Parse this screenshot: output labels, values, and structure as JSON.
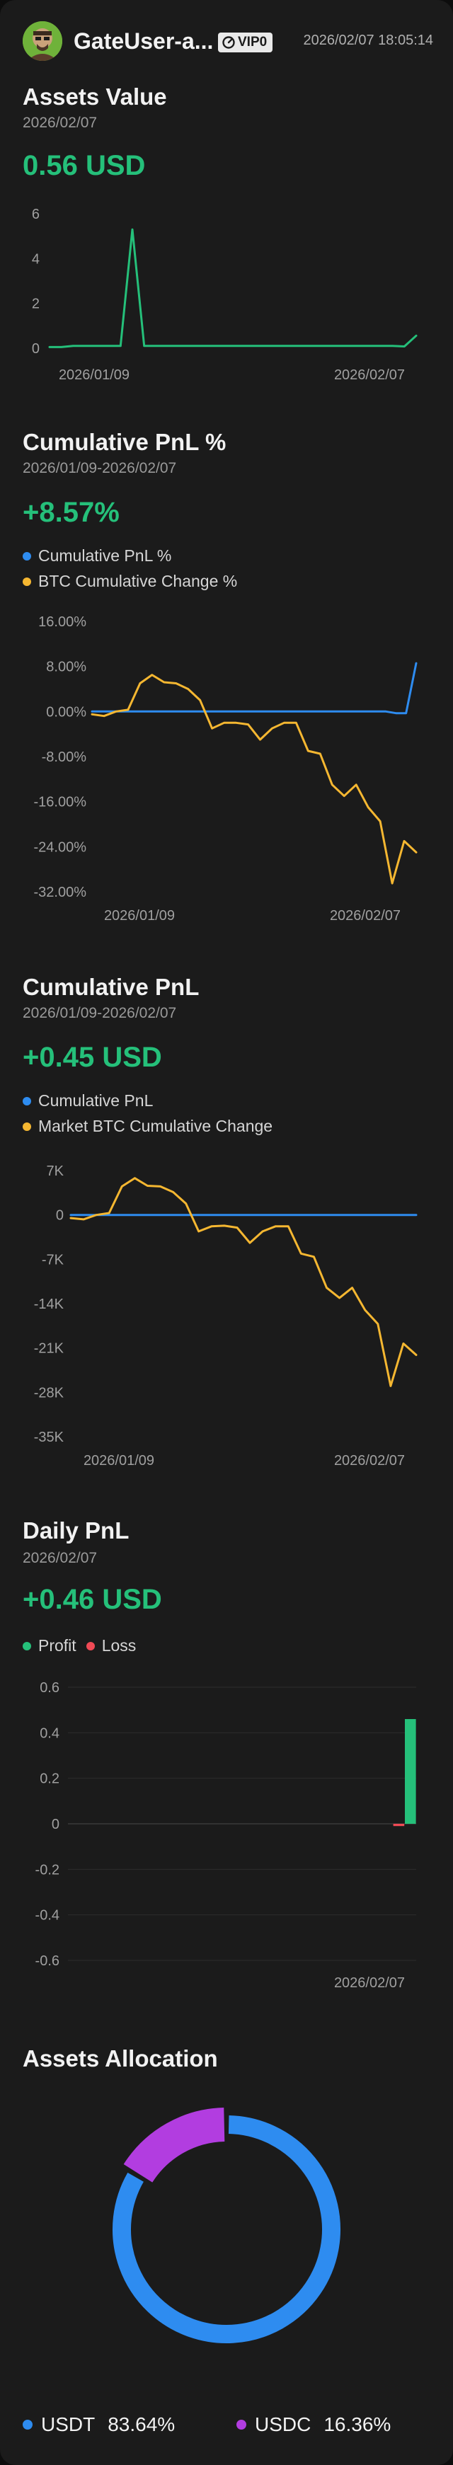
{
  "header": {
    "username": "GateUser-a...",
    "vip_label": "VIP0",
    "datetime": "2026/02/07 18:05:14"
  },
  "assets_value": {
    "title": "Assets Value",
    "date": "2026/02/07",
    "value": "0.56 USD",
    "chart_data": {
      "type": "line",
      "x_tick_labels": [
        "2026/01/09",
        "2026/02/07"
      ],
      "y_ticks": [
        0,
        2,
        4,
        6
      ],
      "ylim": [
        0,
        6
      ],
      "series": [
        {
          "color": "#25c07a",
          "values": [
            0.05,
            0.05,
            0.1,
            0.1,
            0.1,
            0.1,
            0.1,
            5.3,
            0.1,
            0.1,
            0.1,
            0.1,
            0.1,
            0.1,
            0.1,
            0.1,
            0.1,
            0.1,
            0.1,
            0.1,
            0.1,
            0.1,
            0.1,
            0.1,
            0.1,
            0.1,
            0.1,
            0.1,
            0.1,
            0.1,
            0.08,
            0.56
          ]
        }
      ]
    }
  },
  "cum_pnl_pct": {
    "title": "Cumulative PnL %",
    "date_range": "2026/01/09-2026/02/07",
    "value": "+8.57%",
    "legend": [
      {
        "label": "Cumulative PnL %",
        "color": "#2e8cf0"
      },
      {
        "label": "BTC Cumulative Change %",
        "color": "#f5b731"
      }
    ],
    "chart_data": {
      "type": "line",
      "x_tick_labels": [
        "2026/01/09",
        "2026/02/07"
      ],
      "y_tick_labels": [
        "16.00%",
        "8.00%",
        "0.00%",
        "-8.00%",
        "-16.00%",
        "-24.00%",
        "-32.00%"
      ],
      "y_ticks": [
        16,
        8,
        0,
        -8,
        -16,
        -24,
        -32
      ],
      "ylim": [
        -32,
        16
      ],
      "series": [
        {
          "name": "Cumulative PnL %",
          "color": "#2e8cf0",
          "values": [
            0,
            0,
            0,
            0,
            0,
            0,
            0,
            0,
            0,
            0,
            0,
            0,
            0,
            0,
            0,
            0,
            0,
            0,
            0,
            0,
            0,
            0,
            0,
            0,
            0,
            0,
            0,
            0,
            0,
            0,
            -0.3,
            -0.3,
            8.57
          ]
        },
        {
          "name": "BTC Cumulative Change %",
          "color": "#f5b731",
          "values": [
            -0.5,
            -0.8,
            0,
            0.3,
            5,
            6.5,
            5.2,
            5,
            4,
            2,
            -3,
            -2,
            -2,
            -2.3,
            -5,
            -3,
            -2,
            -2,
            -7,
            -7.5,
            -13,
            -15,
            -13,
            -17,
            -19.5,
            -30.5,
            -23,
            -25
          ]
        }
      ]
    }
  },
  "cum_pnl": {
    "title": "Cumulative PnL",
    "date_range": "2026/01/09-2026/02/07",
    "value": "+0.45 USD",
    "legend": [
      {
        "label": "Cumulative PnL",
        "color": "#2e8cf0"
      },
      {
        "label": "Market BTC Cumulative Change",
        "color": "#f5b731"
      }
    ],
    "chart_data": {
      "type": "line",
      "x_tick_labels": [
        "2026/01/09",
        "2026/02/07"
      ],
      "y_tick_labels": [
        "7K",
        "0",
        "-7K",
        "-14K",
        "-21K",
        "-28K",
        "-35K"
      ],
      "y_ticks": [
        7000,
        0,
        -7000,
        -14000,
        -21000,
        -28000,
        -35000
      ],
      "ylim": [
        -35000,
        7000
      ],
      "series": [
        {
          "name": "Cumulative PnL",
          "color": "#2e8cf0",
          "values": [
            0,
            0,
            0,
            0,
            0,
            0,
            0,
            0,
            0,
            0,
            0,
            0,
            0,
            0,
            0,
            0,
            0,
            0,
            0,
            0,
            0,
            0,
            0,
            0,
            0,
            0,
            0,
            0,
            0,
            0,
            0,
            0,
            0.45
          ]
        },
        {
          "name": "Market BTC Cumulative Change",
          "color": "#f5b731",
          "values": [
            -500,
            -700,
            0,
            300,
            4500,
            5800,
            4600,
            4500,
            3600,
            1800,
            -2600,
            -1800,
            -1700,
            -2000,
            -4400,
            -2600,
            -1800,
            -1800,
            -6100,
            -6600,
            -11500,
            -13100,
            -11500,
            -15000,
            -17200,
            -27000,
            -20300,
            -22100
          ]
        }
      ]
    }
  },
  "daily_pnl": {
    "title": "Daily PnL",
    "date": "2026/02/07",
    "value": "+0.46 USD",
    "legend": [
      {
        "label": "Profit",
        "color": "#25c07a"
      },
      {
        "label": "Loss",
        "color": "#f04a55"
      }
    ],
    "chart_data": {
      "type": "bar",
      "x_tick_labels": [
        "2026/02/07"
      ],
      "y_ticks": [
        0.6,
        0.4,
        0.2,
        0,
        -0.2,
        -0.4,
        -0.6
      ],
      "y_tick_labels": [
        "0.6",
        "0.4",
        "0.2",
        "0",
        "-0.2",
        "-0.4",
        "-0.6"
      ],
      "ylim": [
        -0.6,
        0.6
      ],
      "values": [
        0,
        0,
        0,
        0,
        0,
        0,
        0,
        0,
        0,
        0,
        0,
        0,
        0,
        0,
        0,
        0,
        0,
        0,
        0,
        0,
        0,
        0,
        0,
        0,
        0,
        0,
        0,
        0,
        -0.01,
        0.46
      ]
    }
  },
  "allocation": {
    "title": "Assets Allocation",
    "chart_data": {
      "type": "pie",
      "slices": [
        {
          "label": "USDT",
          "value": 83.64,
          "pct_label": "83.64%",
          "color": "#2e8cf0"
        },
        {
          "label": "USDC",
          "value": 16.36,
          "pct_label": "16.36%",
          "color": "#b23de0"
        }
      ]
    }
  }
}
